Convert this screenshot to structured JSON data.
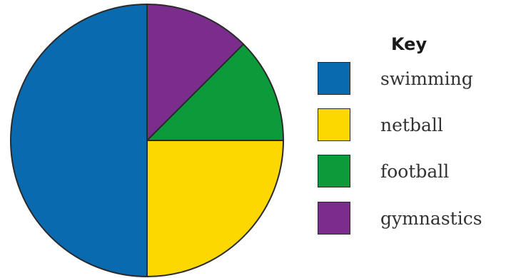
{
  "chart_data": {
    "type": "pie",
    "legend_title": "Key",
    "legend_position": "right",
    "slices": [
      {
        "label": "swimming",
        "value": 50,
        "color": "#0a6ab0"
      },
      {
        "label": "netball",
        "value": 25,
        "color": "#fdd800"
      },
      {
        "label": "football",
        "value": 12.5,
        "color": "#0d9a3a"
      },
      {
        "label": "gymnastics",
        "value": 12.5,
        "color": "#7b2d8e"
      }
    ]
  }
}
